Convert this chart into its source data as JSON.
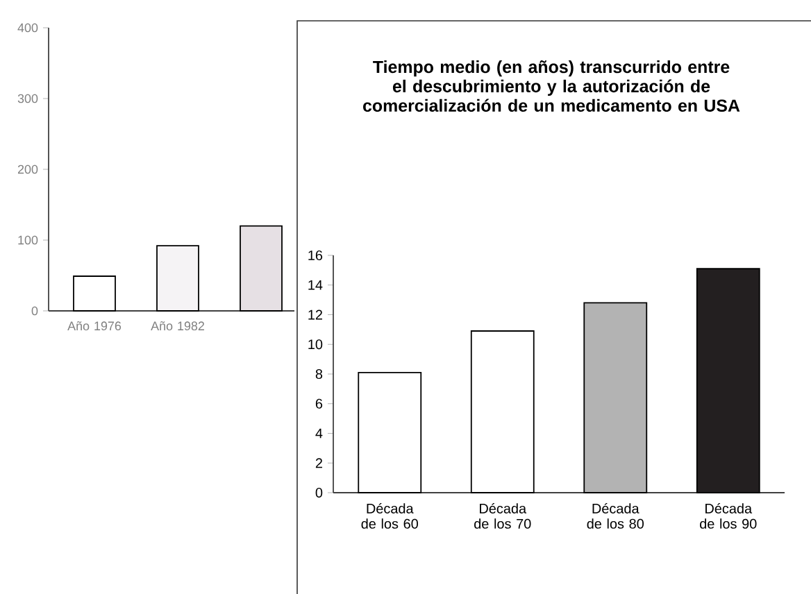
{
  "chart_data": [
    {
      "type": "bar",
      "categories": [
        "Año 1976",
        "Año 1982",
        null
      ],
      "values": [
        49,
        92,
        120
      ],
      "colors": [
        "#ffffff",
        "#f5f3f5",
        "#e6e0e4"
      ],
      "ylim": [
        0,
        400
      ],
      "yticks": [
        0,
        100,
        200,
        300,
        400
      ]
    },
    {
      "type": "bar",
      "title": "Tiempo medio (en años) transcurrido entre el descubrimiento y la autorización de comercialización de un medicamento en USA",
      "categories": [
        "Década de los 60",
        "Década de los 70",
        "Década de los 80",
        "Década de los 90"
      ],
      "values": [
        8.1,
        10.9,
        12.8,
        15.1
      ],
      "colors": [
        "#ffffff",
        "#ffffff",
        "#b3b3b3",
        "#231f20"
      ],
      "ylim": [
        0,
        16
      ],
      "yticks": [
        0,
        2,
        4,
        6,
        8,
        10,
        12,
        14,
        16
      ]
    }
  ]
}
